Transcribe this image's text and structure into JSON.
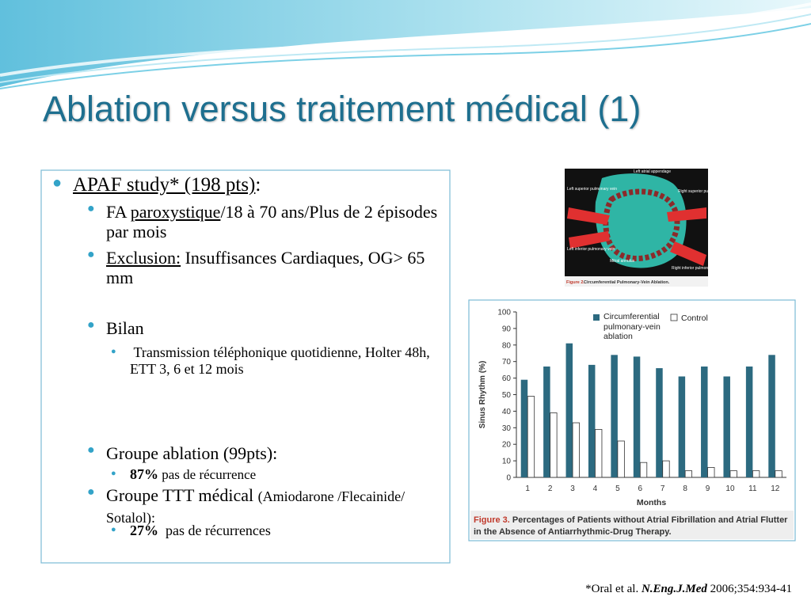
{
  "title": "Ablation versus traitement médical (1)",
  "bullets": [
    {
      "level": 1,
      "parts": [
        {
          "text": "APAF study* (198 pts)",
          "underline": true
        },
        {
          "text": ":"
        }
      ]
    },
    {
      "level": 2,
      "parts": [
        {
          "text": "FA "
        },
        {
          "text": "paroxystique",
          "underline": true
        },
        {
          "text": "/18 à 70 ans/Plus de 2 épisodes par mois"
        }
      ]
    },
    {
      "level": 2,
      "parts": [
        {
          "text": "Exclusion:",
          "underline": true
        },
        {
          "text": " Insuffisances Cardiaques, OG> 65 mm"
        }
      ]
    },
    {
      "level": 2,
      "parts": [
        {
          "text": "Bilan"
        }
      ]
    },
    {
      "level": 3,
      "parts": [
        {
          "text": " Transmission téléphonique quotidienne, Holter 48h, ETT 3, 6 et 12 mois"
        }
      ]
    },
    {
      "level": 2,
      "parts": [
        {
          "text": "Groupe ablation (99pts):"
        }
      ]
    },
    {
      "level": 3,
      "parts": [
        {
          "text": "87%",
          "bold": true
        },
        {
          "text": " pas de récurrence",
          "small": true
        }
      ]
    },
    {
      "level": 2,
      "parts": [
        {
          "text": "Groupe TTT médical "
        },
        {
          "text": "(Amiodarone /Flecainide/ Sotalol):",
          "small": true
        }
      ]
    },
    {
      "level": 3,
      "parts": [
        {
          "text": "27%",
          "bold": true
        },
        {
          "text": "  pas de récurrences"
        }
      ]
    }
  ],
  "footnote": [
    {
      "text": "*Oral et al. "
    },
    {
      "text": "N.Eng.J.Med",
      "bold": true,
      "italic": true
    },
    {
      "text": " 2006;354:934-41"
    }
  ],
  "figure2": {
    "labels": [
      "Left atrial appendage",
      "Left superior pulmonary vein",
      "Right superior pulmonary vein",
      "Left inferior pulmonary vein",
      "Mitral annulus",
      "Right inferior pulmonary vein"
    ],
    "caption_label": "Figure 2.",
    "caption": "Circumferential Pulmonary-Vein Ablation."
  },
  "chart_data": {
    "type": "bar",
    "caption_label": "Figure 3.",
    "caption": "Percentages of Patients without Atrial Fibrillation and Atrial Flutter in the Absence of Antiarrhythmic-Drug Therapy.",
    "xlabel": "Months",
    "ylabel": "Sinus Rhythm (%)",
    "categories": [
      "1",
      "2",
      "3",
      "4",
      "5",
      "6",
      "7",
      "8",
      "9",
      "10",
      "11",
      "12"
    ],
    "series": [
      {
        "name": "Circumferential pulmonary-vein ablation",
        "color": "#2c6a80",
        "values": [
          59,
          67,
          81,
          68,
          74,
          73,
          66,
          61,
          67,
          61,
          67,
          74
        ]
      },
      {
        "name": "Control",
        "color": "#ffffff",
        "values": [
          49,
          39,
          33,
          29,
          22,
          9,
          10,
          4,
          6,
          4,
          4,
          4
        ]
      }
    ],
    "ylim": [
      0,
      100
    ],
    "yticks": [
      0,
      10,
      20,
      30,
      40,
      50,
      60,
      70,
      80,
      90,
      100
    ],
    "grid": false
  }
}
